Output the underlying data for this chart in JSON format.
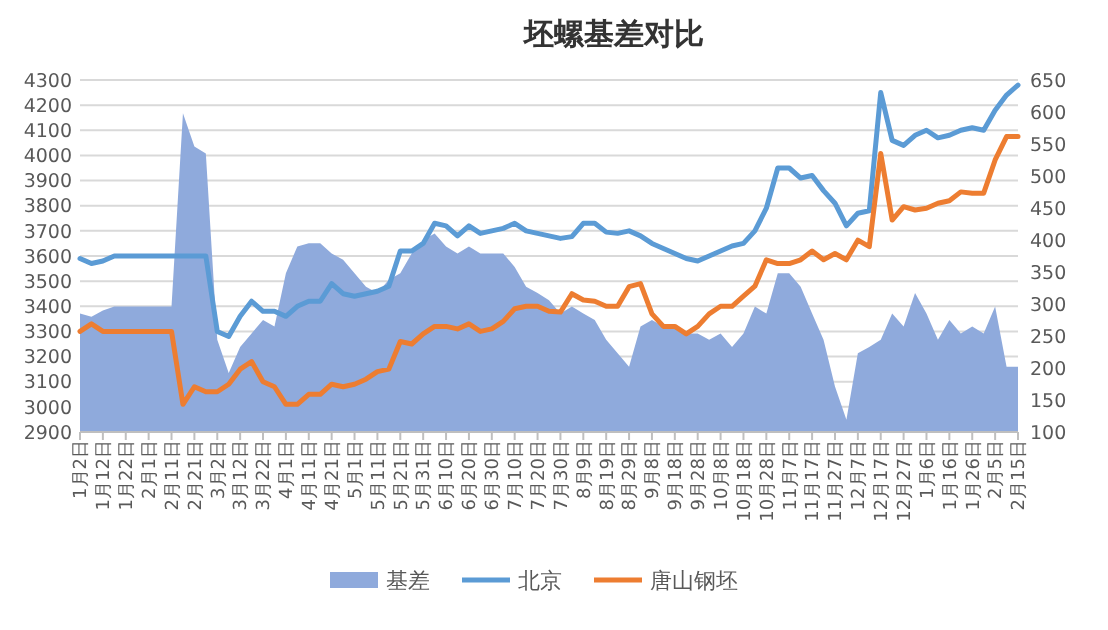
{
  "chart_data": {
    "type": "line",
    "title": "坯螺基差对比",
    "categories": [
      "1月2日",
      null,
      "1月12日",
      null,
      "1月22日",
      null,
      "2月1日",
      null,
      "2月11日",
      null,
      "2月21日",
      null,
      "3月2日",
      null,
      "3月12日",
      null,
      "3月22日",
      null,
      "4月1日",
      null,
      "4月11日",
      null,
      "4月21日",
      null,
      "5月1日",
      null,
      "5月11日",
      null,
      "5月21日",
      null,
      "5月31日",
      null,
      "6月10日",
      null,
      "6月20日",
      null,
      "6月30日",
      null,
      "7月10日",
      null,
      "7月20日",
      null,
      "7月30日",
      null,
      "8月9日",
      null,
      "8月19日",
      null,
      "8月29日",
      null,
      "9月8日",
      null,
      "9月18日",
      null,
      "9月28日",
      null,
      "10月8日",
      null,
      "10月18日",
      null,
      "10月28日",
      null,
      "11月7日",
      null,
      "11月17日",
      null,
      "11月27日",
      null,
      "12月7日",
      null,
      "12月17日",
      null,
      "12月27日",
      null,
      "1月6日",
      null,
      "1月16日",
      null,
      "1月26日",
      null,
      "2月5日",
      null,
      "2月15日"
    ],
    "series": [
      {
        "name": "基差",
        "type": "area",
        "axis": "y2",
        "color": "#8faadc",
        "values": [
          285,
          280,
          290,
          296,
          296,
          296,
          296,
          296,
          296,
          598,
          546,
          535,
          244,
          192,
          233,
          254,
          275,
          265,
          348,
          390,
          395,
          395,
          379,
          369,
          348,
          327,
          317,
          338,
          348,
          379,
          400,
          410,
          390,
          379,
          390,
          379,
          379,
          379,
          358,
          327,
          317,
          306,
          285,
          296,
          285,
          275,
          244,
          223,
          202,
          265,
          275,
          265,
          265,
          254,
          254,
          244,
          254,
          233,
          254,
          296,
          285,
          348,
          348,
          327,
          285,
          244,
          171,
          119,
          223,
          233,
          244,
          285,
          265,
          317,
          285,
          244,
          275,
          254,
          265,
          254,
          296,
          202,
          202
        ]
      },
      {
        "name": "北京",
        "color": "#5b9bd5",
        "values": [
          3590,
          3570,
          3580,
          3600,
          3600,
          3600,
          3600,
          3600,
          3600,
          3600,
          3600,
          3600,
          3300,
          3280,
          3360,
          3420,
          3380,
          3380,
          3360,
          3400,
          3420,
          3420,
          3490,
          3450,
          3440,
          3450,
          3460,
          3480,
          3620,
          3620,
          3650,
          3730,
          3720,
          3680,
          3720,
          3690,
          3700,
          3710,
          3730,
          3700,
          3690,
          3680,
          3670,
          3677,
          3730,
          3730,
          3695,
          3690,
          3700,
          3680,
          3650,
          3630,
          3610,
          3590,
          3580,
          3600,
          3620,
          3640,
          3650,
          3700,
          3790,
          3950,
          3950,
          3910,
          3920,
          3860,
          3810,
          3720,
          3770,
          3780,
          4250,
          4060,
          4040,
          4080,
          4100,
          4070,
          4080,
          4100,
          4110,
          4100,
          4180,
          4240,
          4280
        ]
      },
      {
        "name": "唐山钢坯",
        "color": "#ed7d31",
        "values": [
          3300,
          3330,
          3300,
          3300,
          3300,
          3300,
          3300,
          3300,
          3300,
          3010,
          3080,
          3060,
          3060,
          3090,
          3150,
          3180,
          3100,
          3080,
          3010,
          3010,
          3050,
          3050,
          3090,
          3080,
          3090,
          3110,
          3140,
          3150,
          3260,
          3250,
          3290,
          3320,
          3320,
          3310,
          3330,
          3300,
          3310,
          3340,
          3390,
          3400,
          3400,
          3380,
          3377,
          3450,
          3425,
          3420,
          3400,
          3400,
          3478,
          3490,
          3370,
          3320,
          3320,
          3290,
          3320,
          3370,
          3400,
          3400,
          3440,
          3480,
          3585,
          3570,
          3570,
          3585,
          3620,
          3585,
          3610,
          3585,
          3663,
          3637,
          4008,
          3743,
          3796,
          3783,
          3790,
          3810,
          3820,
          3855,
          3850,
          3850,
          3982,
          4075,
          4075
        ]
      }
    ],
    "ylim": [
      2900,
      4300
    ],
    "yticks": [
      2900,
      3000,
      3100,
      3200,
      3300,
      3400,
      3500,
      3600,
      3700,
      3800,
      3900,
      4000,
      4100,
      4200,
      4300
    ],
    "y2lim": [
      100,
      650
    ],
    "y2ticks": [
      100,
      150,
      200,
      250,
      300,
      350,
      400,
      450,
      500,
      550,
      600,
      650
    ],
    "grid": "y",
    "legend": "bottom"
  }
}
